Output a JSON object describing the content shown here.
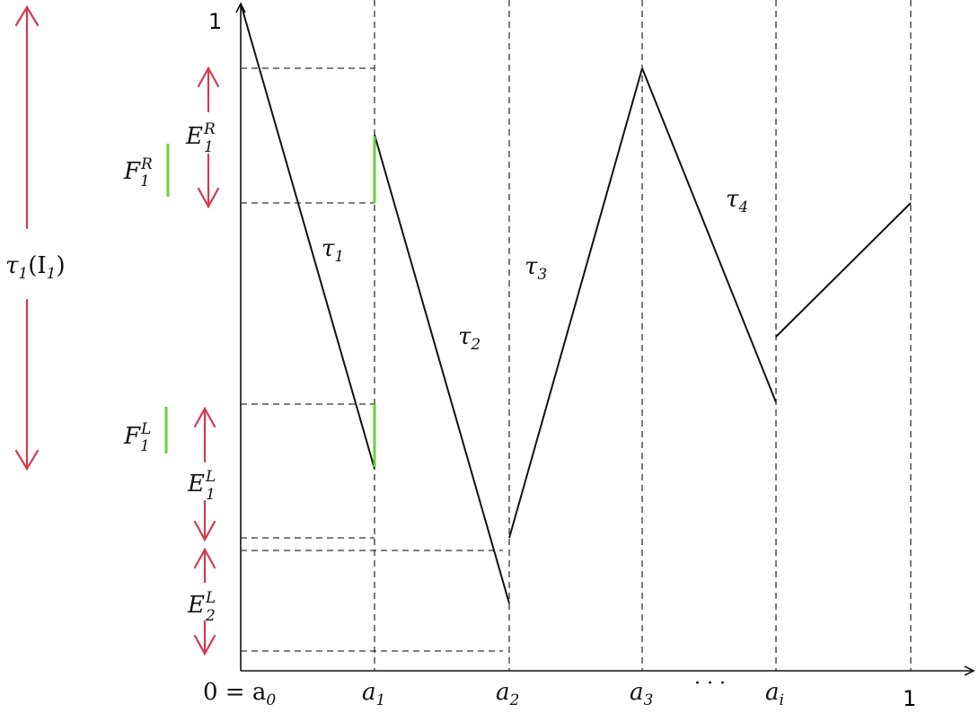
{
  "x_labels": {
    "a0": "0 = a",
    "a0_sub": "0",
    "a1": "a",
    "a1_sub": "1",
    "a2": "a",
    "a2_sub": "2",
    "a3": "a",
    "a3_sub": "3",
    "dots": "· · ·",
    "ai": "a",
    "ai_sub": "i",
    "one": "1"
  },
  "y_labels": {
    "one": "1"
  },
  "branch_labels": {
    "tau1": "τ",
    "tau1_sub": "1",
    "tau2": "τ",
    "tau2_sub": "2",
    "tau3": "τ",
    "tau3_sub": "3",
    "tau4": "τ",
    "tau4_sub": "4"
  },
  "interval_labels": {
    "tau1_I1": "τ",
    "tau1_I1_sub": "1",
    "tau1_I1_rest": "(I",
    "tau1_I1_sub2": "1",
    "tau1_I1_close": ")",
    "E1R": "E",
    "E1R_sub": "1",
    "E1R_sup": "R",
    "F1R": "F",
    "F1R_sub": "1",
    "F1R_sup": "R",
    "F1L": "F",
    "F1L_sub": "1",
    "F1L_sup": "L",
    "E1L": "E",
    "E1L_sub": "1",
    "E1L_sup": "L",
    "E2L": "E",
    "E2L_sub": "2",
    "E2L_sup": "L"
  },
  "colors": {
    "arrow_red": "#d23a4e",
    "marker_green": "#6ccf3b",
    "line_black": "#111111"
  }
}
